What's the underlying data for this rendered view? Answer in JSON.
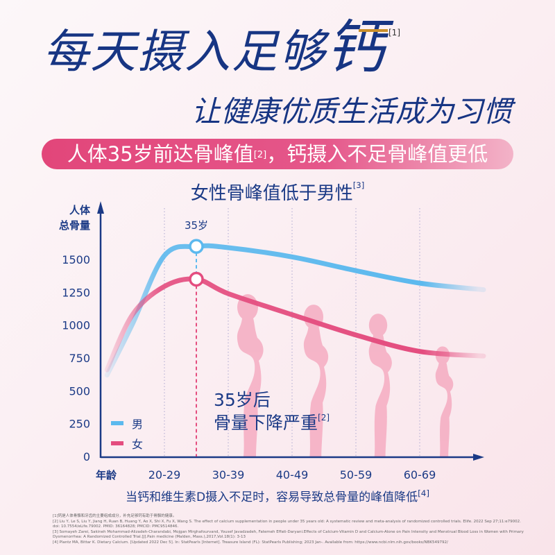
{
  "header": {
    "title_main": "每天摄入足够",
    "title_highlight": "钙",
    "title_ref": "[1]",
    "subtitle": "让健康优质生活成为习惯",
    "banner_part1": "人体35岁前达骨峰值",
    "banner_ref": "[2]",
    "banner_part2": "，钙摄入不足骨峰值更低",
    "accent_gold": "#c98f2a",
    "accent_pink": "#e2467a",
    "navy": "#173583"
  },
  "chart_data": {
    "type": "line",
    "title": "女性骨峰值低于男性",
    "title_ref": "[3]",
    "ylabel_line1": "人体",
    "ylabel_line2": "总骨量",
    "xlabel": "年龄",
    "yticks": [
      "0",
      "250",
      "500",
      "750",
      "1000",
      "1250",
      "1500"
    ],
    "ylim": [
      0,
      1750
    ],
    "categories": [
      "20-29",
      "30-39",
      "40-49",
      "50-59",
      "60-69"
    ],
    "grid": "vertical-dotted",
    "legend_placement": "bottom-left",
    "peak_label": "35岁",
    "peak_age": 35,
    "series": [
      {
        "name": "男",
        "color": "#5cb9ee",
        "points": [
          [
            21,
            620
          ],
          [
            25,
            1010
          ],
          [
            30,
            1530
          ],
          [
            35,
            1600
          ],
          [
            40,
            1590
          ],
          [
            50,
            1520
          ],
          [
            60,
            1415
          ],
          [
            70,
            1320
          ],
          [
            80,
            1270
          ]
        ]
      },
      {
        "name": "女",
        "color": "#e44d7f",
        "points": [
          [
            21,
            660
          ],
          [
            25,
            1080
          ],
          [
            30,
            1295
          ],
          [
            35,
            1350
          ],
          [
            40,
            1240
          ],
          [
            50,
            1080
          ],
          [
            60,
            925
          ],
          [
            70,
            800
          ],
          [
            80,
            765
          ]
        ]
      }
    ],
    "annotation_line1": "35岁后",
    "annotation_line2": "骨量下降严重",
    "annotation_ref": "[2]"
  },
  "footer": {
    "note": "当钙和维生素D摄入不足时，容易导致总骨量的峰值降低",
    "note_ref": "[4]",
    "references": [
      "[1]钙是人体骨骼和牙齿的主要组成成分，补充足够钙有助于骨骼的健康。",
      "[2] Liu Y, Le S, Liu Y, Jiang H, Ruan B, Huang Y, Ao X, Shi X, Fu X, Wang S. The effect of calcium supplementation in people under 35 years old: A systematic review and meta-analysis of randomized controlled trials. Elife. 2022 Sep 27;11:e79002. doi: 10.7554/eLife.79002. PMID: 36164828; PMCID: PMC9514846.",
      "[3] Somayeh Zarei, Sakineh Mohammad-Alizadeh-Charandabi, Mojgan Mirghafourvand, Yousef Javadzadeh, Fatemeh Effati-Daryani.Effects of Calcium-Vitamin D and Calcium-Alone on Pain Intensity and Menstrual Blood Loss in Women with Primary Dysmenorrhea: A Randomized Controlled Trial.[J].Pain medicine (Malden, Mass.),2017,Vol.18(1): 3-13",
      "[4] Plantz MA, Bittar K. Dietary Calcium. [Updated 2022 Dec 5]. In: StatPearls [Internet]. Treasure Island (FL): StatPearls Publishing; 2023 Jan-. Available from: https://www.ncbi.nlm.nih.gov/books/NBK549792/"
    ]
  }
}
